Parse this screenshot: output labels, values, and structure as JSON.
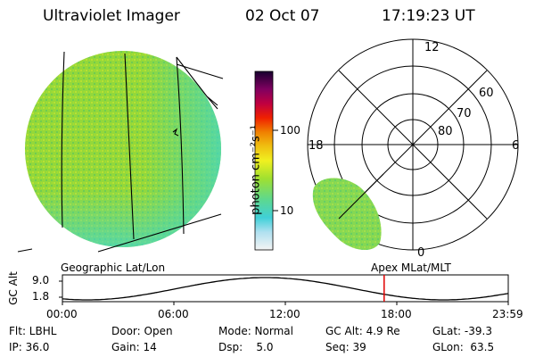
{
  "header": {
    "title": "Ultraviolet Imager",
    "date": "02 Oct 07",
    "time": "17:19:23 UT"
  },
  "colorbar": {
    "unit_label": "photon cm⁻²s⁻¹",
    "ticks": [
      "100",
      "10"
    ]
  },
  "polar": {
    "mlt_labels": [
      "12",
      "18",
      "6",
      "0"
    ],
    "lat_labels": [
      "60",
      "70",
      "80"
    ]
  },
  "panel_labels": {
    "left": "Geographic Lat/Lon",
    "right": "Apex MLat/MLT"
  },
  "altitude_plot": {
    "ylabel": "GC Alt",
    "y_ticks": [
      "9.0",
      "1.8"
    ],
    "x_ticks": [
      "00:00",
      "06:00",
      "12:00",
      "18:00",
      "23:59"
    ],
    "marker_time": "17:19"
  },
  "info": {
    "row1": {
      "flt": "Flt: LBHL",
      "door": "Door: Open",
      "mode": "Mode: Normal",
      "gc_alt": "GC Alt: 4.9 Re",
      "glat": "GLat: -39.3"
    },
    "row2": {
      "ip": "IP: 36.0",
      "gain": "Gain: 14",
      "dsp": "Dsp:    5.0",
      "seq": "Seq: 39",
      "glon": "GLon:  63.5"
    }
  },
  "colors": {
    "image_fill": "#8fd43a",
    "marker": "#e00000"
  }
}
